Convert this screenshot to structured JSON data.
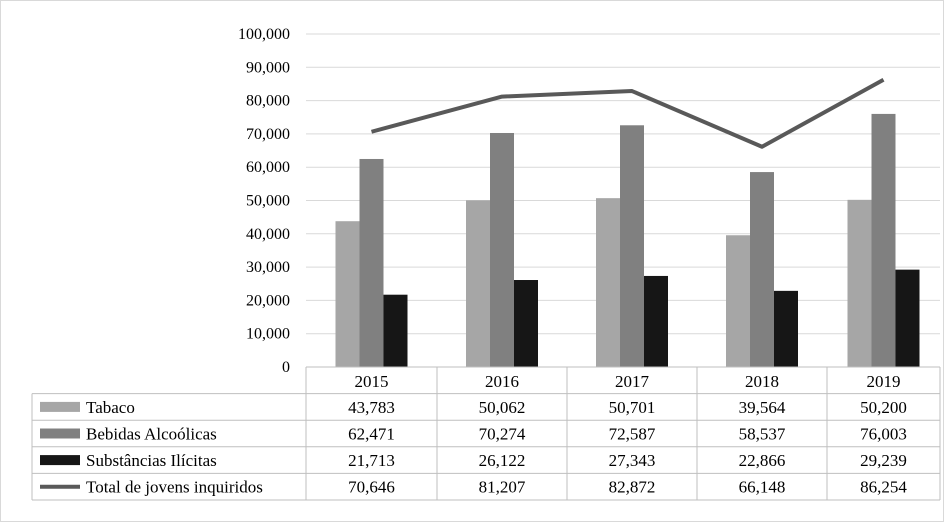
{
  "chart_data": {
    "type": "bar",
    "categories": [
      "2015",
      "2016",
      "2017",
      "2018",
      "2019"
    ],
    "y_ticks": [
      "0",
      "10,000",
      "20,000",
      "30,000",
      "40,000",
      "50,000",
      "60,000",
      "70,000",
      "80,000",
      "90,000",
      "100,000"
    ],
    "ylim": [
      0,
      100000
    ],
    "grid": true,
    "legend": "data-table",
    "series": [
      {
        "name": "Tabaco",
        "type": "bar",
        "color": "#a6a6a6",
        "values": [
          43783,
          50062,
          50701,
          39564,
          50200
        ],
        "labels": [
          "43,783",
          "50,062",
          "50,701",
          "39,564",
          "50,200"
        ]
      },
      {
        "name": "Bebidas Alcoólicas",
        "type": "bar",
        "color": "#808080",
        "values": [
          62471,
          70274,
          72587,
          58537,
          76003
        ],
        "labels": [
          "62,471",
          "70,274",
          "72,587",
          "58,537",
          "76,003"
        ]
      },
      {
        "name": "Substâncias Ilícitas",
        "type": "bar",
        "color": "#161616",
        "values": [
          21713,
          26122,
          27343,
          22866,
          29239
        ],
        "labels": [
          "21,713",
          "26,122",
          "27,343",
          "22,866",
          "29,239"
        ]
      },
      {
        "name": "Total de jovens inquiridos",
        "type": "line",
        "color": "#595959",
        "values": [
          70646,
          81207,
          82872,
          66148,
          86254
        ],
        "labels": [
          "70,646",
          "81,207",
          "82,872",
          "66,148",
          "86,254"
        ]
      }
    ]
  }
}
